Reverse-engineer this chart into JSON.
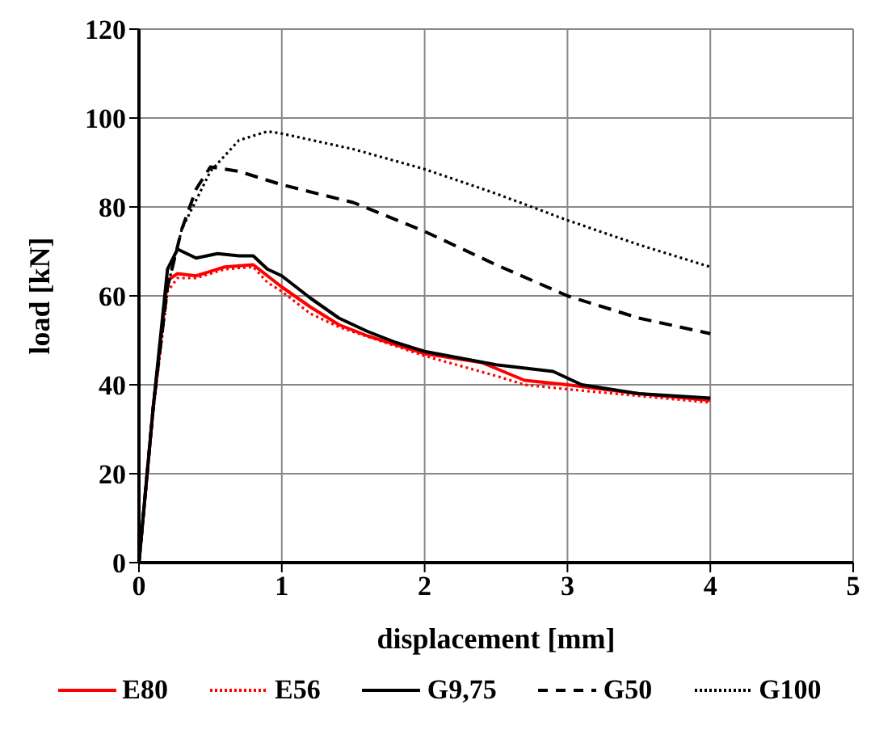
{
  "chart_data": {
    "type": "line",
    "xlabel": "displacement [mm]",
    "ylabel": "load [kN]",
    "xlim": [
      0,
      5
    ],
    "xticks": [
      0,
      1,
      2,
      3,
      4,
      5
    ],
    "ylim": [
      0,
      120
    ],
    "yticks": [
      0,
      20,
      40,
      60,
      80,
      100,
      120
    ],
    "grid": true,
    "legend": "bottom",
    "marker": "none",
    "series": [
      {
        "name": "E80",
        "color": "#ff0000",
        "line_style": "solid",
        "x": [
          0,
          0.1,
          0.2,
          0.27,
          0.4,
          0.6,
          0.8,
          0.9,
          1,
          1.2,
          1.4,
          1.6,
          2,
          2.4,
          2.7,
          3,
          3.5,
          4
        ],
        "values": [
          0,
          35,
          63.5,
          65,
          64.5,
          66.5,
          67,
          64.5,
          62,
          57.5,
          53.5,
          51,
          47,
          45,
          41,
          40,
          38,
          36.5
        ]
      },
      {
        "name": "E56",
        "color": "#ff0000",
        "line_style": "dotted",
        "x": [
          0,
          0.1,
          0.2,
          0.27,
          0.4,
          0.6,
          0.8,
          0.9,
          1,
          1.2,
          1.4,
          2,
          2.5,
          2.7,
          3,
          3.5,
          4
        ],
        "values": [
          0,
          34,
          61,
          64,
          64,
          66,
          66.5,
          63,
          61,
          56,
          53,
          46.5,
          42,
          40,
          39,
          37.5,
          36
        ]
      },
      {
        "name": "G9,75",
        "color": "#000000",
        "line_style": "solid",
        "x": [
          0,
          0.1,
          0.2,
          0.27,
          0.4,
          0.55,
          0.7,
          0.8,
          0.9,
          1,
          1.2,
          1.4,
          1.6,
          1.8,
          2,
          2.5,
          2.9,
          3.1,
          3.5,
          4
        ],
        "values": [
          0,
          35,
          66,
          70.5,
          68.5,
          69.5,
          69,
          69,
          66,
          64.5,
          59.5,
          55,
          52,
          49.5,
          47.5,
          44.5,
          43,
          40,
          38,
          37
        ]
      },
      {
        "name": "G50",
        "color": "#000000",
        "line_style": "dashed",
        "x": [
          0,
          0.1,
          0.2,
          0.3,
          0.4,
          0.5,
          0.7,
          1,
          1.5,
          2,
          2.5,
          3,
          3.5,
          4
        ],
        "values": [
          0,
          35,
          62,
          75,
          84,
          89,
          88,
          85,
          81,
          74.5,
          67,
          60,
          55,
          51.5
        ]
      },
      {
        "name": "G100",
        "color": "#000000",
        "line_style": "dotted",
        "x": [
          0,
          0.1,
          0.2,
          0.3,
          0.5,
          0.7,
          0.9,
          1,
          1.5,
          2,
          2.5,
          3,
          3.5,
          4
        ],
        "values": [
          0,
          35,
          62,
          75,
          88,
          95,
          97,
          96.5,
          93,
          88.5,
          83,
          77,
          71.5,
          66.5
        ]
      }
    ]
  }
}
